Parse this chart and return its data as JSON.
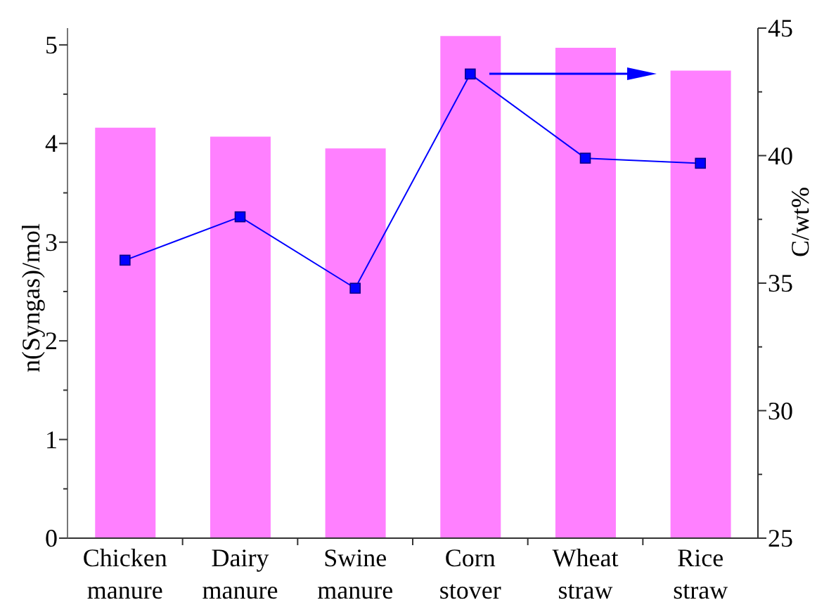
{
  "chart_data": {
    "type": "bar",
    "categories": [
      "Chicken manure",
      "Dairy manure",
      "Swine manure",
      "Corn stover",
      "Wheat straw",
      "Rice straw"
    ],
    "series": [
      {
        "color": "#ff80ff",
        "values": [
          4.16,
          4.07,
          3.95,
          5.09,
          4.97,
          4.74
        ]
      },
      {
        "type": "line",
        "axis": "y2",
        "color": "#0000ff",
        "values": [
          35.9,
          37.6,
          34.8,
          43.2,
          39.9,
          39.7
        ]
      }
    ],
    "marker": "square",
    "ylabel": "n(Syngas)/mol",
    "y2label": "C/wt%",
    "ylim": [
      0,
      5.17
    ],
    "yticks": [
      0,
      {
        "value": 0.5,
        "label": null
      },
      1,
      {
        "value": 1.5,
        "label": null
      },
      2,
      {
        "value": 2.5,
        "label": null
      },
      3,
      {
        "value": 3.5,
        "label": null
      },
      4,
      {
        "value": 4.5,
        "label": null
      },
      5
    ],
    "y2lim": [
      25,
      45
    ],
    "y2ticks": [
      25,
      {
        "value": 27.5,
        "label": null
      },
      30,
      {
        "value": 32.5,
        "label": null
      },
      35,
      {
        "value": 37.5,
        "label": null
      },
      40,
      {
        "value": 42.5,
        "label": null
      },
      45
    ]
  }
}
